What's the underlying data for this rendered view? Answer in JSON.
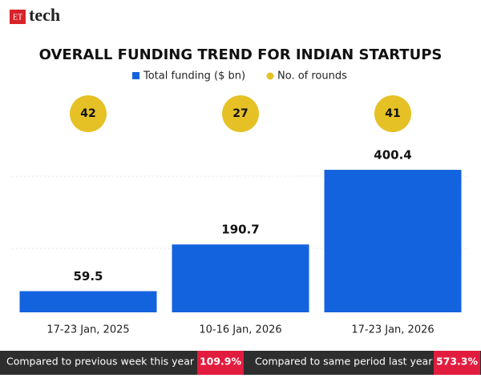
{
  "brand": {
    "mark": "ET",
    "name": "tech"
  },
  "chart_data": {
    "type": "bar",
    "title": "OVERALL FUNDING TREND FOR INDIAN STARTUPS",
    "categories": [
      "17-23 Jan, 2025",
      "10-16 Jan, 2026",
      "17-23 Jan, 2026"
    ],
    "series": [
      {
        "name": "Total funding ($ bn)",
        "color": "#1463de",
        "values": [
          59.5,
          190.7,
          400.4
        ]
      },
      {
        "name": "No. of rounds",
        "color": "#e5c125",
        "values": [
          42,
          27,
          41
        ]
      }
    ],
    "ylim": [
      0,
      450
    ]
  },
  "footer": [
    {
      "label": "Compared to previous week this year",
      "value": "109.9%"
    },
    {
      "label": "Compared to same period last year",
      "value": "573.3%"
    }
  ]
}
